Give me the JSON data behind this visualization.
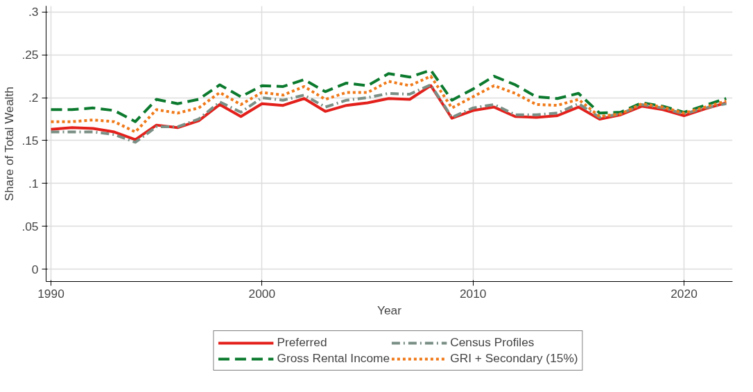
{
  "chart_data": {
    "type": "line",
    "xlabel": "Year",
    "ylabel": "Share of Total Wealth",
    "x": [
      1990,
      1991,
      1992,
      1993,
      1994,
      1995,
      1996,
      1997,
      1998,
      1999,
      2000,
      2001,
      2002,
      2003,
      2004,
      2005,
      2006,
      2007,
      2008,
      2009,
      2010,
      2011,
      2012,
      2013,
      2014,
      2015,
      2016,
      2017,
      2018,
      2019,
      2020,
      2021,
      2022
    ],
    "series": [
      {
        "name": "Preferred",
        "color": "#e3201b",
        "line_style": "solid",
        "values": [
          0.163,
          0.165,
          0.164,
          0.16,
          0.151,
          0.168,
          0.165,
          0.173,
          0.192,
          0.178,
          0.193,
          0.191,
          0.199,
          0.184,
          0.191,
          0.194,
          0.199,
          0.198,
          0.214,
          0.176,
          0.185,
          0.189,
          0.178,
          0.177,
          0.179,
          0.189,
          0.175,
          0.18,
          0.19,
          0.186,
          0.179,
          0.187,
          0.194
        ]
      },
      {
        "name": "Gross Rental Income",
        "color": "#0c7a2e",
        "line_style": "dashed",
        "values": [
          0.186,
          0.186,
          0.188,
          0.185,
          0.172,
          0.198,
          0.193,
          0.198,
          0.215,
          0.201,
          0.214,
          0.213,
          0.221,
          0.207,
          0.217,
          0.214,
          0.228,
          0.224,
          0.232,
          0.197,
          0.21,
          0.225,
          0.215,
          0.201,
          0.199,
          0.205,
          0.182,
          0.183,
          0.194,
          0.19,
          0.183,
          0.191,
          0.199
        ]
      },
      {
        "name": "Census Profiles",
        "color": "#7a8f85",
        "line_style": "dashdot",
        "values": [
          0.16,
          0.16,
          0.16,
          0.157,
          0.148,
          0.166,
          0.166,
          0.175,
          0.195,
          0.183,
          0.2,
          0.197,
          0.203,
          0.189,
          0.197,
          0.2,
          0.205,
          0.204,
          0.215,
          0.177,
          0.188,
          0.192,
          0.18,
          0.18,
          0.182,
          0.193,
          0.177,
          0.181,
          0.192,
          0.188,
          0.181,
          0.188,
          0.193
        ]
      },
      {
        "name": "GRI + Secondary (15%)",
        "color": "#f07a1a",
        "line_style": "dotted",
        "values": [
          0.172,
          0.172,
          0.174,
          0.172,
          0.16,
          0.186,
          0.182,
          0.188,
          0.206,
          0.192,
          0.206,
          0.203,
          0.213,
          0.198,
          0.206,
          0.206,
          0.219,
          0.214,
          0.225,
          0.188,
          0.201,
          0.214,
          0.205,
          0.192,
          0.191,
          0.198,
          0.178,
          0.181,
          0.193,
          0.189,
          0.182,
          0.189,
          0.196
        ]
      }
    ],
    "xlim": [
      1989.77,
      2022.3
    ],
    "ylim": [
      -0.0144,
      0.307
    ],
    "xticks": [
      1990,
      2000,
      2010,
      2020
    ],
    "yticks": [
      0,
      {
        "value": 0.05,
        "label": ".05"
      },
      {
        "value": 0.1,
        "label": ".1"
      },
      {
        "value": 0.15,
        "label": ".15"
      },
      {
        "value": 0.2,
        "label": ".2"
      },
      {
        "value": 0.25,
        "label": ".25"
      },
      {
        "value": 0.3,
        "label": ".3"
      }
    ],
    "grid": true,
    "legend": "bottom",
    "marker": "none"
  }
}
